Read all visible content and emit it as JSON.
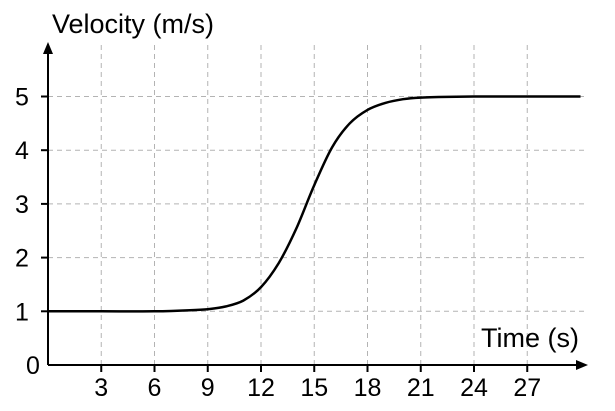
{
  "chart_data": {
    "type": "line",
    "title": "",
    "xlabel": "Time (s)",
    "ylabel": "Velocity (m/s)",
    "xlim": [
      0,
      30
    ],
    "ylim": [
      0,
      5.9
    ],
    "x_ticks": [
      3,
      6,
      9,
      12,
      15,
      18,
      21,
      24,
      27
    ],
    "y_ticks": [
      0,
      1,
      2,
      3,
      4,
      5
    ],
    "grid": true,
    "series": [
      {
        "color": "#000000",
        "x": [
          0,
          3,
          6,
          8,
          9,
          10,
          11,
          12,
          13,
          14,
          15,
          16,
          17,
          18,
          19,
          20,
          21,
          22,
          24,
          27,
          30
        ],
        "y": [
          1.0,
          1.0,
          1.0,
          1.02,
          1.04,
          1.09,
          1.2,
          1.45,
          1.9,
          2.55,
          3.35,
          4.05,
          4.5,
          4.75,
          4.88,
          4.95,
          4.98,
          4.99,
          5.0,
          5.0,
          5.0
        ]
      }
    ]
  }
}
